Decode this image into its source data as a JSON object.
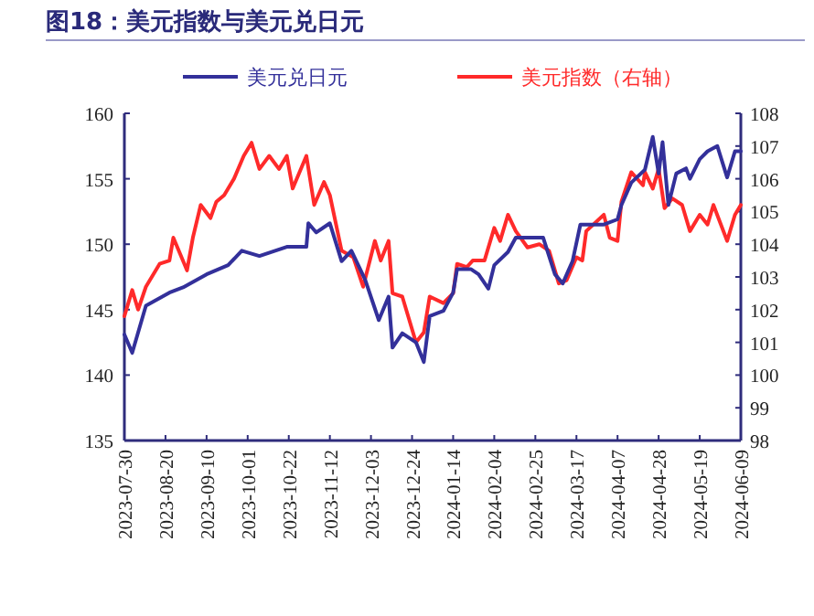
{
  "chart_data": {
    "type": "line",
    "title": "图18：美元指数与美元兑日元",
    "legend": "top",
    "grid": false,
    "xlim": [
      "2023-07-30",
      "2024-06-09"
    ],
    "xticks": [
      "2023-07-30",
      "2023-08-20",
      "2023-09-10",
      "2023-10-01",
      "2023-10-22",
      "2023-11-12",
      "2023-12-03",
      "2023-12-24",
      "2024-01-14",
      "2024-02-04",
      "2024-02-25",
      "2024-03-17",
      "2024-04-07",
      "2024-04-28",
      "2024-05-19",
      "2024-06-09"
    ],
    "ylim": [
      135,
      160
    ],
    "yticks": [
      135,
      140,
      145,
      150,
      155,
      160
    ],
    "y2lim": [
      98,
      108
    ],
    "y2ticks": [
      98,
      99,
      100,
      101,
      102,
      103,
      104,
      105,
      106,
      107,
      108
    ],
    "series": [
      {
        "name": "美元兑日元",
        "color": "#33309a",
        "x": [
          "2023-07-30",
          "2023-08-03",
          "2023-08-10",
          "2023-08-22",
          "2023-08-29",
          "2023-09-10",
          "2023-09-21",
          "2023-09-28",
          "2023-10-07",
          "2023-10-21",
          "2023-10-31",
          "2023-11-01",
          "2023-11-05",
          "2023-11-12",
          "2023-11-18",
          "2023-11-23",
          "2023-11-30",
          "2023-12-07",
          "2023-12-12",
          "2023-12-14",
          "2023-12-19",
          "2023-12-26",
          "2023-12-30",
          "2024-01-02",
          "2024-01-09",
          "2024-01-14",
          "2024-01-16",
          "2024-01-23",
          "2024-01-27",
          "2024-02-01",
          "2024-02-04",
          "2024-02-11",
          "2024-02-15",
          "2024-02-29",
          "2024-03-06",
          "2024-03-10",
          "2024-03-15",
          "2024-03-19",
          "2024-03-31",
          "2024-04-07",
          "2024-04-09",
          "2024-04-14",
          "2024-04-21",
          "2024-04-25",
          "2024-04-28",
          "2024-04-30",
          "2024-05-03",
          "2024-05-07",
          "2024-05-12",
          "2024-05-14",
          "2024-05-19",
          "2024-05-23",
          "2024-05-28",
          "2024-06-02",
          "2024-06-06",
          "2024-06-09"
        ],
        "values": [
          143.1,
          141.7,
          145.3,
          146.3,
          146.7,
          147.7,
          148.4,
          149.5,
          149.1,
          149.8,
          149.8,
          151.6,
          150.9,
          151.6,
          148.7,
          149.5,
          147.3,
          144.2,
          146.0,
          142.1,
          143.2,
          142.5,
          141.0,
          144.5,
          144.9,
          146.3,
          148.1,
          148.1,
          147.7,
          146.6,
          148.4,
          149.4,
          150.5,
          150.5,
          147.7,
          147.0,
          148.7,
          151.5,
          151.5,
          151.9,
          153.0,
          154.7,
          155.7,
          158.2,
          155.4,
          157.8,
          153.0,
          155.4,
          155.8,
          155.0,
          156.5,
          157.1,
          157.5,
          155.1,
          157.1,
          157.1
        ]
      },
      {
        "name": "美元指数（右轴）",
        "color": "#ff2a2a",
        "axis": "y2",
        "x": [
          "2023-07-30",
          "2023-08-03",
          "2023-08-06",
          "2023-08-10",
          "2023-08-17",
          "2023-08-22",
          "2023-08-24",
          "2023-08-31",
          "2023-09-03",
          "2023-09-07",
          "2023-09-12",
          "2023-09-15",
          "2023-09-19",
          "2023-09-24",
          "2023-09-29",
          "2023-10-03",
          "2023-10-07",
          "2023-10-12",
          "2023-10-17",
          "2023-10-21",
          "2023-10-24",
          "2023-10-31",
          "2023-11-04",
          "2023-11-09",
          "2023-11-12",
          "2023-11-18",
          "2023-11-24",
          "2023-11-29",
          "2023-12-05",
          "2023-12-08",
          "2023-12-12",
          "2023-12-14",
          "2023-12-19",
          "2023-12-22",
          "2023-12-26",
          "2023-12-30",
          "2024-01-02",
          "2024-01-09",
          "2024-01-14",
          "2024-01-16",
          "2024-01-21",
          "2024-01-24",
          "2024-01-30",
          "2024-02-04",
          "2024-02-07",
          "2024-02-11",
          "2024-02-15",
          "2024-02-21",
          "2024-02-27",
          "2024-03-03",
          "2024-03-08",
          "2024-03-12",
          "2024-03-17",
          "2024-03-20",
          "2024-03-22",
          "2024-03-31",
          "2024-04-03",
          "2024-04-07",
          "2024-04-09",
          "2024-04-14",
          "2024-04-20",
          "2024-04-21",
          "2024-04-25",
          "2024-04-28",
          "2024-05-01",
          "2024-05-05",
          "2024-05-10",
          "2024-05-14",
          "2024-05-19",
          "2024-05-23",
          "2024-05-26",
          "2024-06-02",
          "2024-06-06",
          "2024-06-09"
        ],
        "values": [
          101.8,
          102.6,
          102.0,
          102.7,
          103.4,
          103.5,
          104.2,
          103.2,
          104.2,
          105.2,
          104.8,
          105.3,
          105.5,
          106.0,
          106.7,
          107.1,
          106.3,
          106.7,
          106.3,
          106.7,
          105.7,
          106.7,
          105.2,
          105.9,
          105.5,
          103.8,
          103.6,
          102.7,
          104.1,
          103.5,
          104.1,
          102.5,
          102.4,
          101.8,
          101.0,
          101.3,
          102.4,
          102.2,
          102.5,
          103.4,
          103.3,
          103.5,
          103.5,
          104.5,
          104.1,
          104.9,
          104.4,
          103.9,
          104.0,
          103.8,
          102.8,
          102.9,
          103.6,
          103.5,
          104.4,
          104.9,
          104.2,
          104.1,
          105.3,
          106.2,
          105.8,
          106.2,
          105.7,
          106.3,
          105.1,
          105.4,
          105.2,
          104.4,
          104.9,
          104.6,
          105.2,
          104.1,
          104.9,
          105.2
        ]
      }
    ]
  }
}
